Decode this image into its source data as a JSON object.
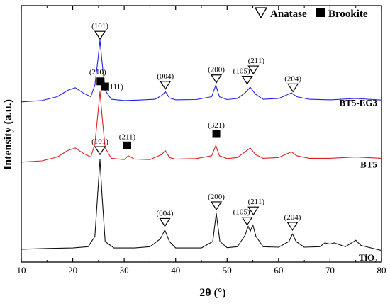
{
  "chart_data": {
    "type": "line",
    "title": "",
    "xlabel": "2θ (°)",
    "ylabel": "Intensity (a.u.)",
    "xlim": [
      10,
      80
    ],
    "ylim": [
      0,
      100
    ],
    "x_ticks": [
      10,
      20,
      30,
      40,
      50,
      60,
      70,
      80
    ],
    "y_ticks_shown": false,
    "grid": false,
    "legend": {
      "placement": "top-right",
      "items": [
        {
          "marker": "triangle-open",
          "label": "Anatase"
        },
        {
          "marker": "square-filled",
          "label": "Brookite"
        }
      ]
    },
    "series": [
      {
        "name": "BT5-EG3",
        "color": "#2222ee",
        "x": [
          10,
          14,
          17,
          19,
          20.5,
          22,
          23.5,
          24.3,
          24.9,
          25.3,
          25.7,
          26.3,
          27.5,
          30,
          33,
          36,
          37.3,
          38,
          38.8,
          40,
          44,
          47,
          47.8,
          48.5,
          50,
          52,
          53.5,
          54.5,
          55.5,
          57,
          60,
          62.5,
          63.5,
          66,
          70,
          75,
          80
        ],
        "y": [
          62.5,
          63,
          64.5,
          67,
          68,
          66,
          64.5,
          69,
          79,
          86.5,
          78,
          67,
          63.5,
          63,
          63.2,
          63.5,
          65,
          66.5,
          64,
          63.3,
          63.4,
          64.5,
          69,
          64.5,
          63.4,
          63.8,
          66,
          68.2,
          65.5,
          63.5,
          63.8,
          66,
          64.5,
          63.5,
          63.3,
          63.8,
          63.2
        ]
      },
      {
        "name": "BT5",
        "color": "#e02020",
        "x": [
          10,
          14,
          17,
          19,
          20.5,
          22,
          23.5,
          24.3,
          24.9,
          25.3,
          25.7,
          26.3,
          27.5,
          30,
          30.8,
          32,
          35,
          37.3,
          38,
          38.8,
          40,
          44,
          47,
          47.8,
          48.5,
          50,
          52,
          53.5,
          54.5,
          55.5,
          57,
          60,
          62.5,
          63.5,
          66,
          70,
          75,
          80
        ],
        "y": [
          39,
          39.5,
          41,
          43.5,
          44.5,
          42.5,
          41,
          46,
          58,
          66.5,
          57,
          44.5,
          40.5,
          40,
          41.5,
          40.2,
          40,
          42,
          43.5,
          40.8,
          40.2,
          40.4,
          41.5,
          45.5,
          41.5,
          40.4,
          40.8,
          43,
          44.5,
          42,
          40.5,
          40.8,
          43,
          41.5,
          40.5,
          40.5,
          41,
          40.5
        ]
      },
      {
        "name": "TiO₂",
        "color": "#111111",
        "x": [
          10,
          15,
          20,
          23,
          24.3,
          24.9,
          25.3,
          25.7,
          26.3,
          28,
          32,
          35,
          37,
          37.9,
          38.8,
          40,
          45,
          47.2,
          47.9,
          48.6,
          50,
          52,
          53.5,
          54.1,
          54.5,
          55,
          55.6,
          57,
          60,
          62,
          62.7,
          63.4,
          65,
          68,
          69,
          70,
          70.8,
          73,
          75,
          76,
          80
        ],
        "y": [
          5,
          5.3,
          5.5,
          6,
          10,
          28,
          40,
          26,
          8,
          5.5,
          5.5,
          6,
          9,
          12.5,
          8,
          5.5,
          5.5,
          8,
          19,
          8,
          5.6,
          6,
          10.5,
          14,
          12,
          14.5,
          10,
          6,
          5.8,
          8,
          11,
          8,
          5.8,
          6,
          7.5,
          7,
          7.5,
          6,
          8.5,
          6.5,
          4.5
        ]
      }
    ],
    "series_labels": [
      "BT5-EG3",
      "BT5",
      "TiO₂"
    ],
    "annotations": [
      {
        "series": "BT5-EG3",
        "marker": "triangle-open",
        "text": "(101)",
        "x": 25.3,
        "y": 90
      },
      {
        "series": "BT5-EG3",
        "marker": "triangle-open",
        "text": "(004)",
        "x": 38,
        "y": 70.5
      },
      {
        "series": "BT5-EG3",
        "marker": "triangle-open",
        "text": "(200)",
        "x": 47.9,
        "y": 73
      },
      {
        "series": "BT5-EG3",
        "marker": "triangle-open",
        "text": "(105)",
        "x": 53.9,
        "y": 72.5
      },
      {
        "series": "BT5-EG3",
        "marker": "triangle-open",
        "text": "(211)",
        "x": 55.1,
        "y": 76.5
      },
      {
        "series": "BT5-EG3",
        "marker": "triangle-open",
        "text": "(204)",
        "x": 62.8,
        "y": 69.5
      },
      {
        "series": "BT5",
        "marker": "square-filled",
        "text": "(210)",
        "x": 25.4,
        "y": 70.5
      },
      {
        "series": "BT5",
        "marker": "square-filled",
        "text": "(111)",
        "x": 26.3,
        "y": 68.5
      },
      {
        "series": "BT5",
        "marker": "square-filled",
        "text": "(211)",
        "x": 30.6,
        "y": 45.5
      },
      {
        "series": "BT5",
        "marker": "square-filled",
        "text": "(321)",
        "x": 47.9,
        "y": 50
      },
      {
        "series": "TiO₂",
        "marker": "triangle-open",
        "text": "(101)",
        "x": 25.3,
        "y": 45
      },
      {
        "series": "TiO₂",
        "marker": "triangle-open",
        "text": "(004)",
        "x": 37.9,
        "y": 17
      },
      {
        "series": "TiO₂",
        "marker": "triangle-open",
        "text": "(200)",
        "x": 47.9,
        "y": 23.5
      },
      {
        "series": "TiO₂",
        "marker": "triangle-open",
        "text": "(105)",
        "x": 53.9,
        "y": 17.5
      },
      {
        "series": "TiO₂",
        "marker": "triangle-open",
        "text": "(211)",
        "x": 55.1,
        "y": 21.5
      },
      {
        "series": "TiO₂",
        "marker": "triangle-open",
        "text": "(204)",
        "x": 62.7,
        "y": 15.5
      }
    ]
  }
}
